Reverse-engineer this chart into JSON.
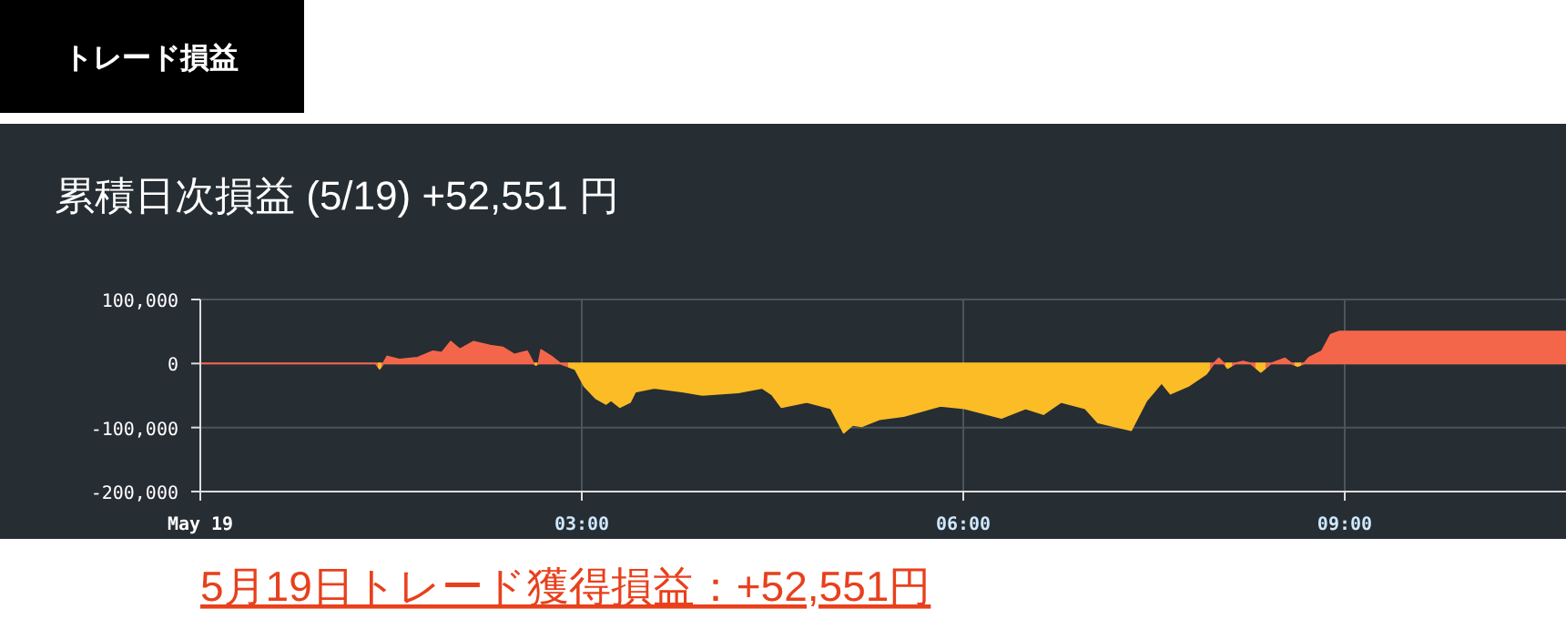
{
  "chart_data": {
    "type": "area",
    "title": "累積日次損益 (5/19) +52,551 円",
    "annotations": [
      "トレード損益",
      "5月19日トレード獲得損益：+52,551円"
    ],
    "x": [
      0,
      1.38,
      1.41,
      1.44,
      1.47,
      1.57,
      1.71,
      1.83,
      1.9,
      1.97,
      2.04,
      2.15,
      2.28,
      2.38,
      2.47,
      2.57,
      2.62,
      2.64,
      2.66,
      2.68,
      2.76,
      2.83,
      2.95,
      3.02,
      3.11,
      3.19,
      3.23,
      3.3,
      3.38,
      3.42,
      3.57,
      3.8,
      3.95,
      4.23,
      4.42,
      4.5,
      4.57,
      4.77,
      4.96,
      5.06,
      5.13,
      5.2,
      5.34,
      5.53,
      5.82,
      6.01,
      6.3,
      6.49,
      6.63,
      6.77,
      6.96,
      7.06,
      7.32,
      7.44,
      7.56,
      7.63,
      7.77,
      7.91,
      7.97,
      8.01,
      8.05,
      8.08,
      8.14,
      8.2,
      8.26,
      8.34,
      8.42,
      8.53,
      8.58,
      8.63,
      8.68,
      8.72,
      8.82,
      8.89,
      8.96,
      10.74
    ],
    "series": [
      {
        "colors": [
          "#f4664a",
          "#f4664a",
          "#fbbc25",
          "#f4664a",
          "#f4664a",
          "#f4664a",
          "#f4664a",
          "#f4664a",
          "#f4664a",
          "#f4664a",
          "#f4664a",
          "#f4664a",
          "#f4664a",
          "#f4664a",
          "#f4664a",
          "#f4664a",
          "#f4664a",
          "#fbbc25",
          "#f4664a",
          "#f4664a",
          "#f4664a",
          "#f4664a",
          "#fbbc25",
          "#fbbc25",
          "#fbbc25",
          "#fbbc25",
          "#fbbc25",
          "#fbbc25",
          "#fbbc25",
          "#fbbc25",
          "#fbbc25",
          "#fbbc25",
          "#fbbc25",
          "#fbbc25",
          "#fbbc25",
          "#fbbc25",
          "#fbbc25",
          "#fbbc25",
          "#fbbc25",
          "#fbbc25",
          "#fbbc25",
          "#fbbc25",
          "#fbbc25",
          "#fbbc25",
          "#fbbc25",
          "#fbbc25",
          "#fbbc25",
          "#fbbc25",
          "#fbbc25",
          "#fbbc25",
          "#fbbc25",
          "#fbbc25",
          "#fbbc25",
          "#fbbc25",
          "#fbbc25",
          "#fbbc25",
          "#fbbc25",
          "#fbbc25",
          "#f4664a",
          "#f4664a",
          "#f4664a",
          "#fbbc25",
          "#f4664a",
          "#f4664a",
          "#f4664a",
          "#fbbc25",
          "#f4664a",
          "#f4664a",
          "#f4664a",
          "#fbbc25",
          "#f4664a",
          "#f4664a",
          "#f4664a",
          "#f4664a",
          "#f4664a",
          "#f4664a"
        ],
        "values": [
          0,
          0,
          -8000,
          0,
          11000,
          6000,
          9000,
          19000,
          17000,
          34000,
          22000,
          34000,
          28000,
          25000,
          14000,
          19000,
          0,
          -2000,
          0,
          21000,
          11000,
          0,
          -9000,
          -35000,
          -54000,
          -63000,
          -57000,
          -68000,
          -60000,
          -44000,
          -38000,
          -44000,
          -49000,
          -45000,
          -38000,
          -49000,
          -68000,
          -60000,
          -70000,
          -108000,
          -96000,
          -98000,
          -87000,
          -82000,
          -66000,
          -70000,
          -85000,
          -70000,
          -79000,
          -60000,
          -70000,
          -92000,
          -104000,
          -58000,
          -30000,
          -47000,
          -35000,
          -16000,
          0,
          8000,
          0,
          -7000,
          0,
          3000,
          0,
          -13000,
          0,
          8000,
          0,
          -4000,
          0,
          9000,
          19000,
          45000,
          50000,
          50000
        ]
      }
    ],
    "xlim": [
      0,
      10.74
    ],
    "xticks": [
      {
        "value": 0,
        "label": "May 19"
      },
      {
        "value": 3,
        "label": "03:00"
      },
      {
        "value": 6,
        "label": "06:00"
      },
      {
        "value": 9,
        "label": "09:00"
      }
    ],
    "ylim": [
      -200000,
      100000
    ],
    "yticks": [
      {
        "value": -200000,
        "label": "-200,000"
      },
      {
        "value": -100000,
        "label": "-100,000"
      },
      0,
      {
        "value": 100000,
        "label": "100,000"
      }
    ],
    "grid": true
  }
}
